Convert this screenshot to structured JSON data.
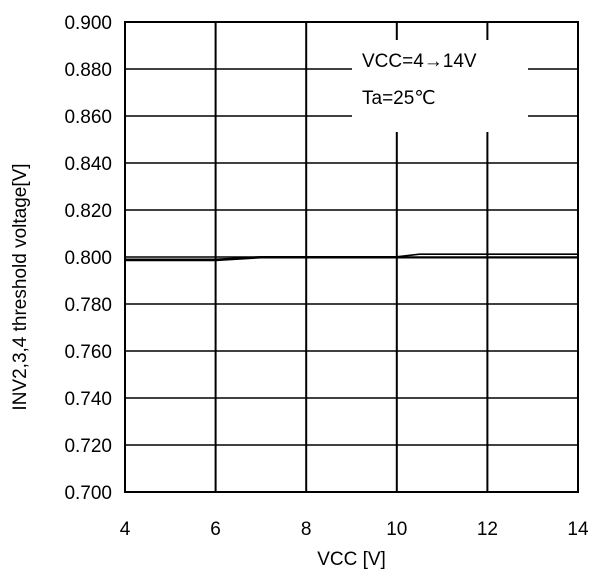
{
  "chart_data": {
    "type": "line",
    "title": "",
    "xlabel": "VCC [V]",
    "ylabel": "INV2,3,4 threshold voltage[V]",
    "xlim": [
      4,
      14
    ],
    "ylim": [
      0.7,
      0.9
    ],
    "x_ticks": [
      "4",
      "6",
      "8",
      "10",
      "12",
      "14"
    ],
    "y_ticks": [
      "0.700",
      "0.720",
      "0.740",
      "0.760",
      "0.780",
      "0.800",
      "0.820",
      "0.840",
      "0.860",
      "0.880",
      "0.900"
    ],
    "grid": true,
    "legend": "none",
    "annotations": [
      "VCC=4→14V",
      "Ta=25℃"
    ],
    "series": [
      {
        "x": [
          4,
          6,
          7,
          10,
          10.5,
          14
        ],
        "y": [
          0.799,
          0.799,
          0.8001,
          0.8001,
          0.8012,
          0.8012
        ]
      },
      {
        "x": [
          4,
          6,
          7,
          10,
          14
        ],
        "y": [
          0.7985,
          0.7985,
          0.7997,
          0.7997,
          0.7997
        ]
      }
    ],
    "line_color": "#000000"
  }
}
